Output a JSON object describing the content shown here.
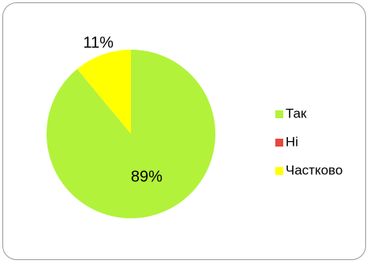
{
  "chart_data": {
    "type": "pie",
    "slices": [
      {
        "name": "Так",
        "value": 89,
        "label": "89%",
        "color": "#b2f23a"
      },
      {
        "name": "Ні",
        "value": 0,
        "label": "",
        "color": "#e8473b"
      },
      {
        "name": "Частково",
        "value": 11,
        "label": "11%",
        "color": "#ffff00"
      }
    ],
    "legend": {
      "position": "right",
      "items": [
        "Так",
        "Ні",
        "Частково"
      ]
    }
  }
}
